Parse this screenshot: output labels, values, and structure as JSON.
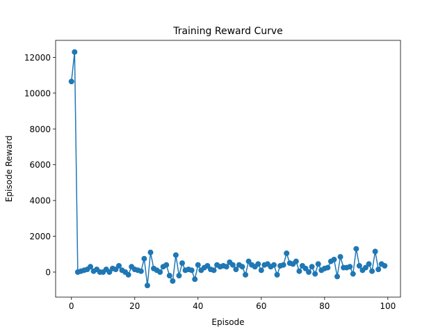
{
  "chart_data": {
    "type": "line",
    "title": "Training Reward Curve",
    "xlabel": "Episode",
    "ylabel": "Episode Reward",
    "xlim": [
      -5,
      104
    ],
    "ylim": [
      -1400,
      12950
    ],
    "xticks": [
      0,
      20,
      40,
      60,
      80,
      100
    ],
    "yticks": [
      0,
      2000,
      4000,
      6000,
      8000,
      10000,
      12000
    ],
    "grid": false,
    "marker": "circle",
    "line_color": "#1f77b4",
    "series": [
      {
        "name": "",
        "x": [
          0,
          1,
          2,
          3,
          4,
          5,
          6,
          7,
          8,
          9,
          10,
          11,
          12,
          13,
          14,
          15,
          16,
          17,
          18,
          19,
          20,
          21,
          22,
          23,
          24,
          25,
          26,
          27,
          28,
          29,
          30,
          31,
          32,
          33,
          34,
          35,
          36,
          37,
          38,
          39,
          40,
          41,
          42,
          43,
          44,
          45,
          46,
          47,
          48,
          49,
          50,
          51,
          52,
          53,
          54,
          55,
          56,
          57,
          58,
          59,
          60,
          61,
          62,
          63,
          64,
          65,
          66,
          67,
          68,
          69,
          70,
          71,
          72,
          73,
          74,
          75,
          76,
          77,
          78,
          79,
          80,
          81,
          82,
          83,
          84,
          85,
          86,
          87,
          88,
          89,
          90,
          91,
          92,
          93,
          94,
          95,
          96,
          97,
          98,
          99
        ],
        "y": [
          10650,
          12300,
          0,
          50,
          100,
          150,
          300,
          50,
          150,
          0,
          0,
          150,
          0,
          200,
          150,
          350,
          100,
          0,
          -150,
          300,
          150,
          100,
          50,
          750,
          -750,
          1100,
          200,
          100,
          0,
          300,
          400,
          -200,
          -500,
          950,
          -200,
          500,
          100,
          150,
          100,
          -400,
          400,
          100,
          250,
          350,
          150,
          100,
          400,
          300,
          350,
          300,
          550,
          400,
          150,
          400,
          300,
          -150,
          600,
          400,
          300,
          450,
          100,
          400,
          450,
          300,
          400,
          -150,
          350,
          400,
          1050,
          500,
          450,
          600,
          50,
          350,
          200,
          0,
          300,
          -100,
          450,
          100,
          200,
          250,
          600,
          700,
          -250,
          850,
          250,
          250,
          300,
          -100,
          1300,
          350,
          100,
          250,
          450,
          50,
          1150,
          150,
          450,
          350
        ]
      }
    ]
  }
}
